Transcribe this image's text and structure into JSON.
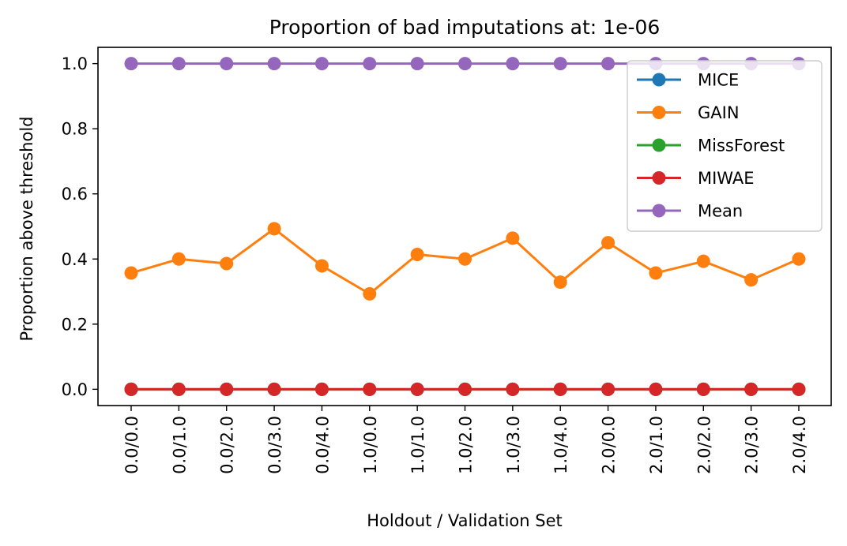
{
  "chart_data": {
    "type": "line",
    "title": "Proportion of bad imputations at: 1e-06",
    "xlabel": "Holdout / Validation Set",
    "ylabel": "Proportion above threshold",
    "categories": [
      "0.0/0.0",
      "0.0/1.0",
      "0.0/2.0",
      "0.0/3.0",
      "0.0/4.0",
      "1.0/0.0",
      "1.0/1.0",
      "1.0/2.0",
      "1.0/3.0",
      "1.0/4.0",
      "2.0/0.0",
      "2.0/1.0",
      "2.0/2.0",
      "2.0/3.0",
      "2.0/4.0"
    ],
    "ylim": [
      -0.05,
      1.05
    ],
    "yticks": [
      0.0,
      0.2,
      0.4,
      0.6,
      0.8,
      1.0
    ],
    "ytick_labels": [
      "0.0",
      "0.2",
      "0.4",
      "0.6",
      "0.8",
      "1.0"
    ],
    "grid": false,
    "legend_position": "upper-right",
    "series": [
      {
        "name": "MICE",
        "color": "#1f77b4",
        "values": [
          0,
          0,
          0,
          0,
          0,
          0,
          0,
          0,
          0,
          0,
          0,
          0,
          0,
          0,
          0
        ]
      },
      {
        "name": "GAIN",
        "color": "#ff7f0e",
        "values": [
          0.357,
          0.4,
          0.386,
          0.493,
          0.379,
          0.293,
          0.414,
          0.4,
          0.464,
          0.329,
          0.45,
          0.357,
          0.393,
          0.336,
          0.4
        ]
      },
      {
        "name": "MissForest",
        "color": "#2ca02c",
        "values": [
          0,
          0,
          0,
          0,
          0,
          0,
          0,
          0,
          0,
          0,
          0,
          0,
          0,
          0,
          0
        ]
      },
      {
        "name": "MIWAE",
        "color": "#d62728",
        "values": [
          0,
          0,
          0,
          0,
          0,
          0,
          0,
          0,
          0,
          0,
          0,
          0,
          0,
          0,
          0
        ]
      },
      {
        "name": "Mean",
        "color": "#9467bd",
        "values": [
          1,
          1,
          1,
          1,
          1,
          1,
          1,
          1,
          1,
          1,
          1,
          1,
          1,
          1,
          1
        ]
      }
    ]
  }
}
